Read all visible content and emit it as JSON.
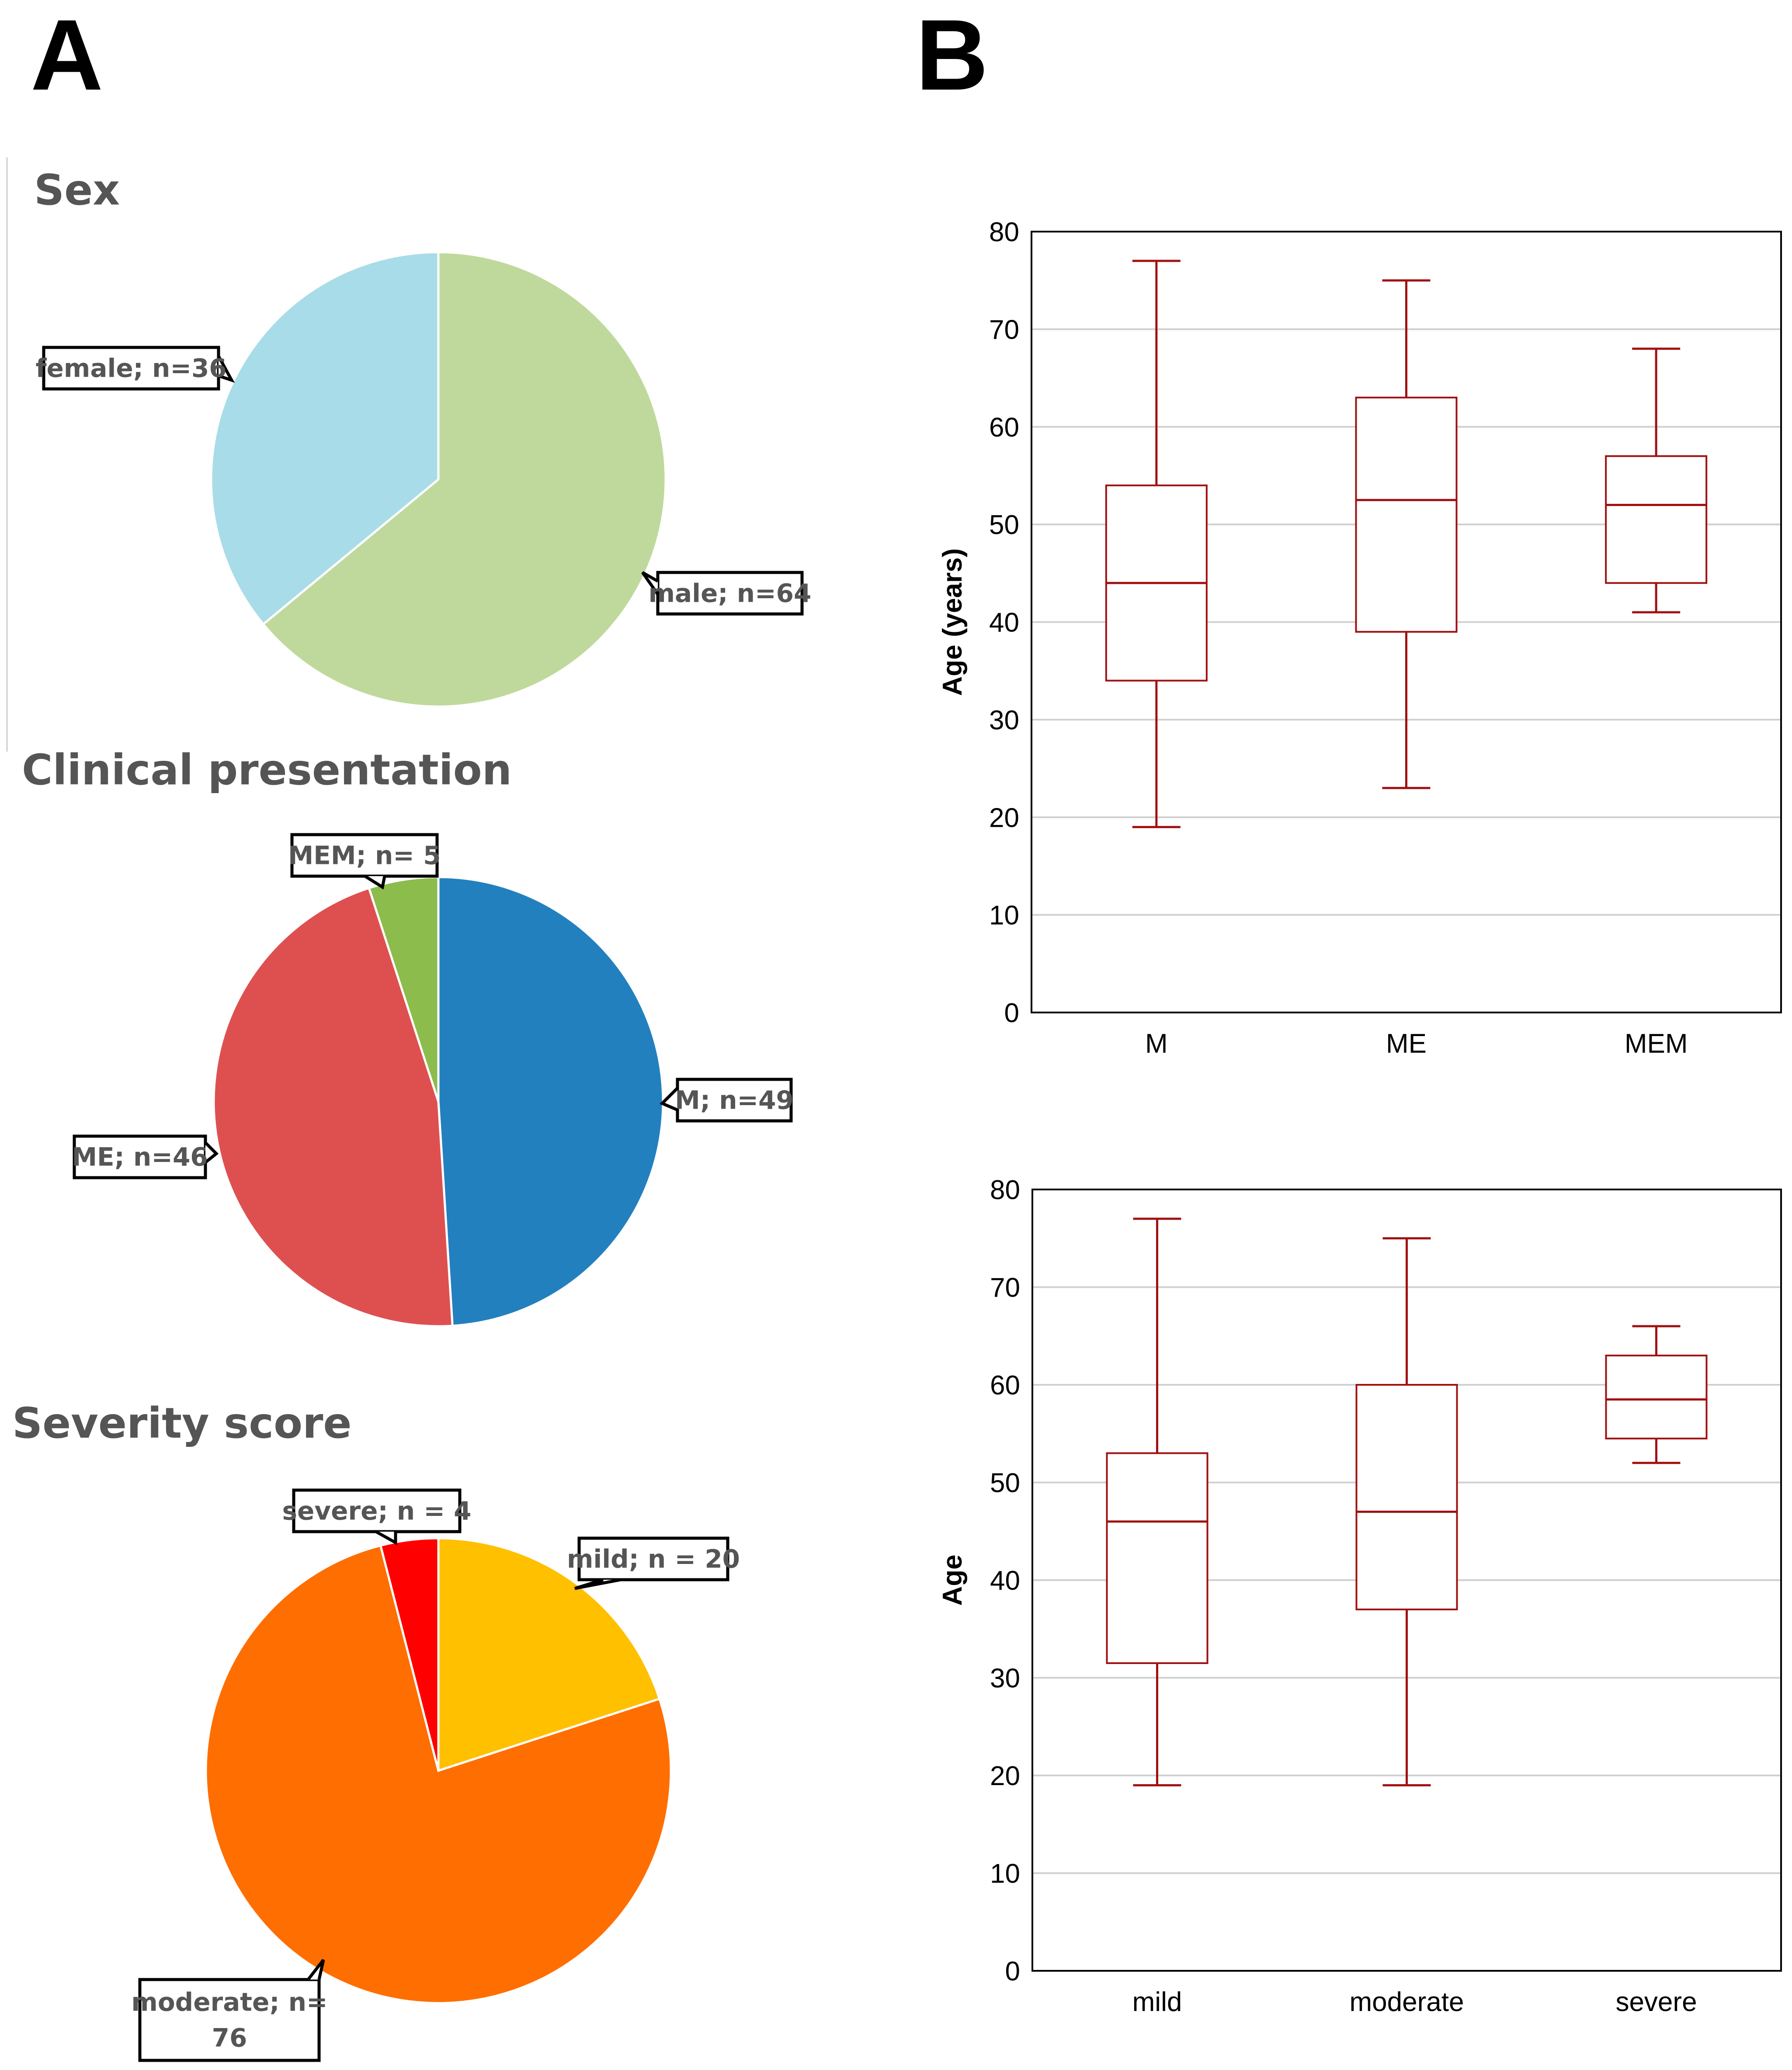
{
  "panels": {
    "a_label": "A",
    "b_label": "B"
  },
  "colors": {
    "box_stroke": "#a01010",
    "sex_female": "#a8dce8",
    "sex_male": "#bfd99c",
    "cp_m": "#2380bf",
    "cp_me": "#de5050",
    "cp_mem": "#8cbc4c",
    "sev_mild": "#ffc000",
    "sev_moderate": "#ff6e00",
    "sev_severe": "#ff0000"
  },
  "chart_data": [
    {
      "id": "sex",
      "type": "pie",
      "title": "Sex",
      "slices": [
        {
          "name": "male",
          "value": 64,
          "label_lines": [
            "male; n=64"
          ],
          "color": "#bfd99c"
        },
        {
          "name": "female",
          "value": 36,
          "label_lines": [
            "female; n=36"
          ],
          "color": "#a8dce8"
        }
      ]
    },
    {
      "id": "clinical",
      "type": "pie",
      "title": "Clinical presentation",
      "slices": [
        {
          "name": "M",
          "value": 49,
          "label_lines": [
            "M; n=49"
          ],
          "color": "#2380bf"
        },
        {
          "name": "ME",
          "value": 46,
          "label_lines": [
            "ME; n=46"
          ],
          "color": "#de5050"
        },
        {
          "name": "MEM",
          "value": 5,
          "label_lines": [
            "MEM; n= 5"
          ],
          "color": "#8cbc4c"
        }
      ]
    },
    {
      "id": "severity",
      "type": "pie",
      "title": "Severity score",
      "slices": [
        {
          "name": "mild",
          "value": 20,
          "label_lines": [
            "mild; n = 20"
          ],
          "color": "#ffc000"
        },
        {
          "name": "moderate",
          "value": 76,
          "label_lines": [
            "moderate; n=",
            "76"
          ],
          "color": "#ff6e00"
        },
        {
          "name": "severe",
          "value": 4,
          "label_lines": [
            "severe; n = 4"
          ],
          "color": "#ff0000"
        }
      ]
    },
    {
      "id": "age_by_presentation",
      "type": "box",
      "ylabel": "Age (years)",
      "ylim": [
        0,
        80
      ],
      "yticks": [
        0,
        10,
        20,
        30,
        40,
        50,
        60,
        70,
        80
      ],
      "categories": [
        "M",
        "ME",
        "MEM"
      ],
      "boxes": [
        {
          "min": 19,
          "q1": 34,
          "median": 44,
          "q3": 54,
          "max": 77
        },
        {
          "min": 23,
          "q1": 39,
          "median": 52.5,
          "q3": 63,
          "max": 75
        },
        {
          "min": 41,
          "q1": 44,
          "median": 52,
          "q3": 57,
          "max": 68
        }
      ]
    },
    {
      "id": "age_by_severity",
      "type": "box",
      "ylabel": "Age",
      "ylim": [
        0,
        80
      ],
      "yticks": [
        0,
        10,
        20,
        30,
        40,
        50,
        60,
        70,
        80
      ],
      "categories": [
        "mild",
        "moderate",
        "severe"
      ],
      "boxes": [
        {
          "min": 19,
          "q1": 31.5,
          "median": 46,
          "q3": 53,
          "max": 77
        },
        {
          "min": 19,
          "q1": 37,
          "median": 47,
          "q3": 60,
          "max": 75
        },
        {
          "min": 52,
          "q1": 54.5,
          "median": 58.5,
          "q3": 63,
          "max": 66
        }
      ]
    }
  ]
}
